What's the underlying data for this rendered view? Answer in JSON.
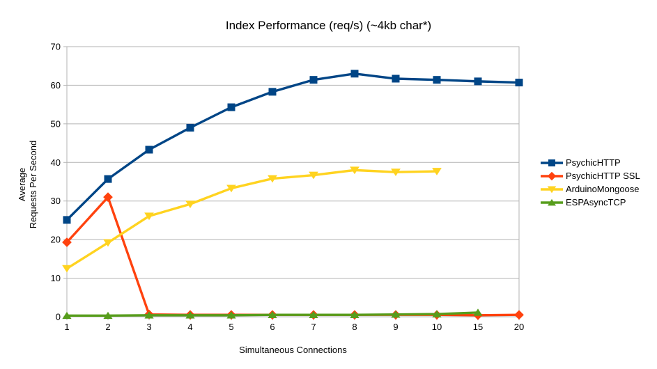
{
  "chart_data": {
    "type": "line",
    "title": "Index Performance (req/s) (~4kb char*)",
    "xlabel": "Simultaneous Connections",
    "ylabel_lines": [
      "Average",
      "Requests Per Second"
    ],
    "categories": [
      "1",
      "2",
      "3",
      "4",
      "5",
      "6",
      "7",
      "8",
      "9",
      "10",
      "15",
      "20"
    ],
    "ylim": [
      0,
      70
    ],
    "y_ticks": [
      0,
      10,
      20,
      30,
      40,
      50,
      60,
      70
    ],
    "grid": true,
    "legend_position": "right",
    "axis_color": "#b3b3b3",
    "text_color": "#000000",
    "background_color": "#ffffff",
    "series": [
      {
        "name": "PsychicHTTP",
        "color": "#004586",
        "marker": "square",
        "values": [
          25.1,
          35.7,
          43.3,
          49.0,
          54.3,
          58.3,
          61.4,
          63.0,
          61.7,
          61.4,
          61.0,
          60.7
        ]
      },
      {
        "name": "PsychicHTTP SSL",
        "color": "#ff420e",
        "marker": "diamond",
        "values": [
          19.3,
          31.0,
          0.6,
          0.5,
          0.5,
          0.5,
          0.5,
          0.5,
          0.5,
          0.5,
          0.4,
          0.5
        ]
      },
      {
        "name": "ArduinoMongoose",
        "color": "#ffd320",
        "marker": "triangle-down",
        "values": [
          12.5,
          19.2,
          26.1,
          29.2,
          33.3,
          35.8,
          36.7,
          38.0,
          37.5,
          37.7,
          null,
          null
        ]
      },
      {
        "name": "ESPAsyncTCP",
        "color": "#579d1c",
        "marker": "triangle-up",
        "values": [
          0.3,
          0.3,
          0.4,
          0.4,
          0.4,
          0.5,
          0.5,
          0.5,
          0.6,
          0.7,
          1.1,
          null
        ]
      }
    ]
  }
}
